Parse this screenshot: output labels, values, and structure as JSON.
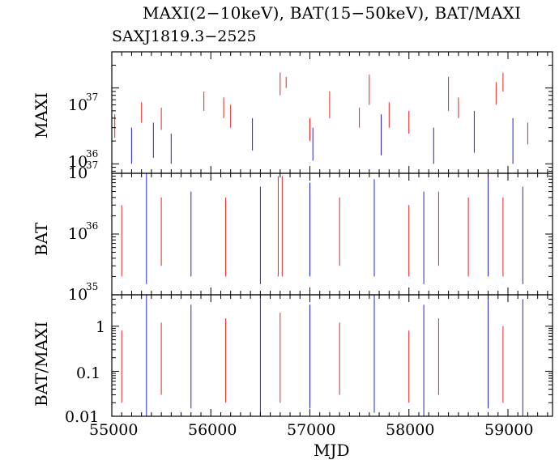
{
  "title": "MAXI(2−10keV), BAT(15−50keV), BAT/MAXI",
  "subtitle": "SAXJ1819.3−2525",
  "colors": {
    "high_state": "#e8231f",
    "low_state": "#2222dd",
    "faint": "#a9a9ff",
    "frame": "#000000"
  },
  "chart_data": [
    {
      "type": "line",
      "panel": "top",
      "ylabel": "MAXI",
      "yscale": "log",
      "ylim": [
        7.5e+35,
        3e+37
      ],
      "xlim": [
        55000,
        59450
      ],
      "ytick_labels": [
        {
          "base": "10",
          "exp": "36",
          "value": 1e+36
        },
        {
          "base": "10",
          "exp": "37",
          "value": 1e+37
        }
      ],
      "series": [
        {
          "color": "red",
          "x": [
            55030,
            55300,
            55500,
            55930,
            56130,
            56200,
            56700,
            56760,
            57000,
            57200,
            57500,
            57600,
            57800,
            58000,
            58400,
            58500,
            58880,
            58950,
            59200
          ],
          "low": [
            2.2e+36,
            3.5e+36,
            2.8e+36,
            5e+36,
            4e+36,
            3e+36,
            8e+36,
            1e+37,
            2e+36,
            4e+36,
            3e+36,
            6e+36,
            3e+36,
            2.5e+36,
            5e+36,
            4e+36,
            6e+36,
            9e+36,
            1.8e+36
          ],
          "high": [
            4.5e+36,
            6.5e+36,
            5.5e+36,
            9e+36,
            7.5e+36,
            6e+36,
            1.6e+37,
            1.4e+37,
            4e+36,
            9e+36,
            5.5e+36,
            1.5e+37,
            6.5e+36,
            5e+36,
            1.4e+37,
            7.5e+36,
            1.2e+37,
            1.6e+37,
            3.5e+36
          ]
        },
        {
          "color": "blue",
          "x": [
            55200,
            55420,
            55600,
            56420,
            57030,
            57720,
            58250,
            58660,
            59050
          ],
          "low": [
            1e+36,
            1.2e+36,
            1e+36,
            1.5e+36,
            1.1e+36,
            1.3e+36,
            1e+36,
            1.4e+36,
            1e+36
          ],
          "high": [
            3e+36,
            3.5e+36,
            2.5e+36,
            4e+36,
            3e+36,
            4.5e+36,
            3e+36,
            5e+36,
            4e+36
          ]
        }
      ]
    },
    {
      "type": "line",
      "panel": "middle",
      "ylabel": "BAT",
      "yscale": "log",
      "ylim": [
        1e+35,
        1e+37
      ],
      "xlim": [
        55000,
        59450
      ],
      "ytick_labels": [
        {
          "base": "10",
          "exp": "35",
          "value": 1e+35
        },
        {
          "base": "10",
          "exp": "36",
          "value": 1e+36
        },
        {
          "base": "10",
          "exp": "37",
          "value": 1e+37
        }
      ],
      "series": [
        {
          "color": "red",
          "x": [
            55100,
            55500,
            56150,
            56680,
            56720,
            57300,
            58000,
            58300,
            58600,
            58950
          ],
          "low": [
            2e+35,
            3e+35,
            2e+35,
            2e+35,
            2e+35,
            3e+35,
            2e+35,
            3e+35,
            2e+35,
            2e+35
          ],
          "high": [
            3e+36,
            4e+36,
            4e+36,
            9e+36,
            9e+36,
            4e+36,
            3e+36,
            5e+36,
            4e+36,
            4e+36
          ]
        },
        {
          "color": "blue",
          "x": [
            55350,
            55800,
            56500,
            57000,
            57650,
            58150,
            58800,
            59150
          ],
          "low": [
            1.5e+35,
            2e+35,
            1.5e+35,
            2e+35,
            2e+35,
            1.5e+35,
            2e+35,
            1.5e+35
          ],
          "high": [
            1e+37,
            5e+36,
            6e+36,
            7e+36,
            8e+36,
            5e+36,
            1e+37,
            6e+36
          ]
        }
      ]
    },
    {
      "type": "line",
      "panel": "bottom",
      "ylabel": "BAT/MAXI",
      "xlabel": "MJD",
      "yscale": "log",
      "ylim": [
        0.01,
        5
      ],
      "xlim": [
        55000,
        59450
      ],
      "ytick_labels": [
        "0.01",
        "0.1",
        "1"
      ],
      "xtick_labels": [
        "55000",
        "56000",
        "57000",
        "58000",
        "59000"
      ],
      "series": [
        {
          "color": "red",
          "x": [
            55100,
            55500,
            56150,
            56700,
            57300,
            58000,
            58300,
            58950
          ],
          "low": [
            0.02,
            0.03,
            0.02,
            0.02,
            0.03,
            0.02,
            0.03,
            0.02
          ],
          "high": [
            0.8,
            1.2,
            1.5,
            2,
            1.2,
            0.8,
            1.5,
            1
          ]
        },
        {
          "color": "blue",
          "x": [
            55350,
            55800,
            56500,
            57000,
            57650,
            58150,
            58800,
            59150
          ],
          "low": [
            0.01,
            0.015,
            0.01,
            0.015,
            0.012,
            0.01,
            0.015,
            0.01
          ],
          "high": [
            5,
            3,
            4,
            3,
            5,
            3,
            5,
            4
          ]
        }
      ]
    }
  ]
}
